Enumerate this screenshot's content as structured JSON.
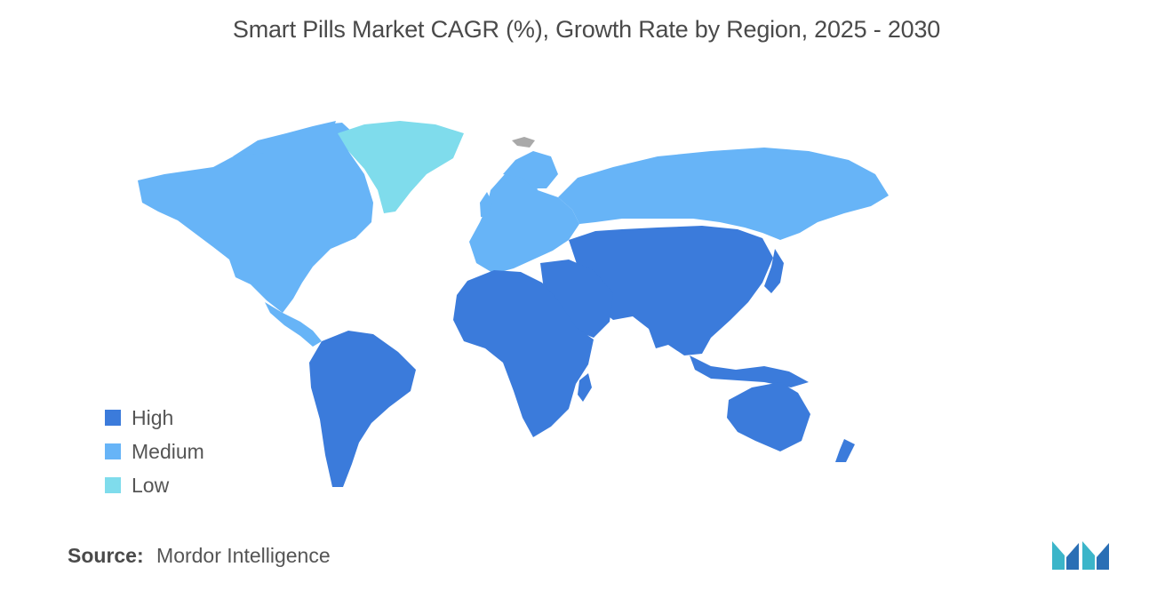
{
  "title": "Smart Pills Market CAGR (%), Growth Rate by Region, 2025 - 2030",
  "legend": [
    {
      "label": "High",
      "color": "#3b7bdb"
    },
    {
      "label": "Medium",
      "color": "#67b4f7"
    },
    {
      "label": "Low",
      "color": "#7fdcec"
    }
  ],
  "colors": {
    "no_data": "#a9a9a9"
  },
  "regions": [
    {
      "name": "North America",
      "level": "Medium"
    },
    {
      "name": "Greenland",
      "level": "Low"
    },
    {
      "name": "Europe",
      "level": "Medium"
    },
    {
      "name": "Russia",
      "level": "Medium"
    },
    {
      "name": "Asia Pacific",
      "level": "High"
    },
    {
      "name": "Middle East and Africa",
      "level": "High"
    },
    {
      "name": "South America",
      "level": "High"
    }
  ],
  "source": {
    "label": "Source:",
    "text": "Mordor Intelligence"
  }
}
